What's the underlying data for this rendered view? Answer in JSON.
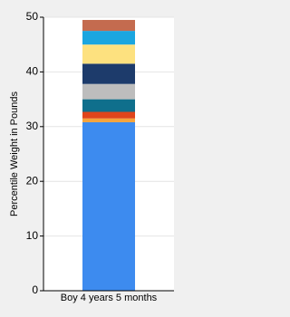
{
  "chart_data": {
    "type": "stacked-bar",
    "y_label": "Percentile Weight in Pounds",
    "categories": [
      "Boy 4 years 5 months"
    ],
    "series": [
      {
        "color": "#3d8bef",
        "values": [
          30.8
        ]
      },
      {
        "color": "#f5a33c",
        "values": [
          0.7
        ]
      },
      {
        "color": "#e0451c",
        "values": [
          1.2
        ]
      },
      {
        "color": "#0f6f8c",
        "values": [
          2.3
        ]
      },
      {
        "color": "#bdbdbd",
        "values": [
          2.8
        ]
      },
      {
        "color": "#1d3b6b",
        "values": [
          3.7
        ]
      },
      {
        "color": "#fde17f",
        "values": [
          3.5
        ]
      },
      {
        "color": "#1ba6e0",
        "values": [
          2.5
        ]
      },
      {
        "color": "#c46b4f",
        "values": [
          2.0
        ]
      }
    ],
    "ylim": [
      0,
      50
    ],
    "yticks": [
      0,
      10,
      20,
      30,
      40,
      50
    ],
    "grid": true
  }
}
